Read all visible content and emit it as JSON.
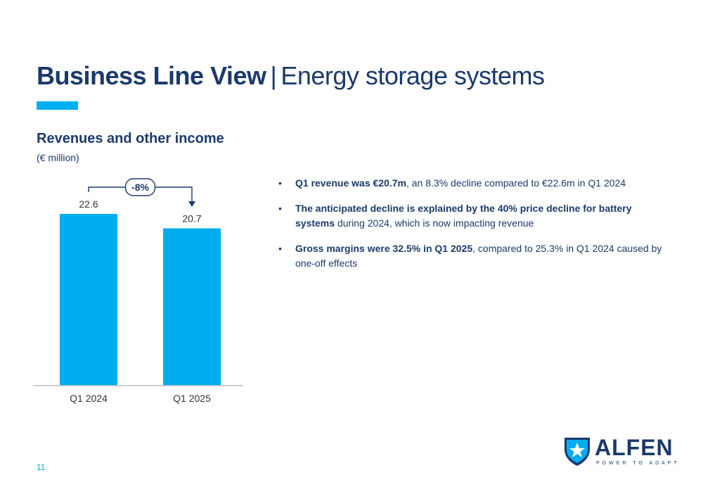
{
  "header": {
    "title_bold": "Business Line View",
    "title_separator": "|",
    "title_rest": "Energy storage systems"
  },
  "chart_section": {
    "title": "Revenues and other income",
    "unit": "(€ million)"
  },
  "chart_data": {
    "type": "bar",
    "categories": [
      "Q1 2024",
      "Q1 2025"
    ],
    "values": [
      22.6,
      20.7
    ],
    "value_labels": [
      "22.6",
      "20.7"
    ],
    "title": "Revenues and other income",
    "ylabel": "(€ million)",
    "ylim": [
      0,
      22.6
    ],
    "grid": false,
    "annotation": "-8%",
    "bar_color": "#00aeef"
  },
  "bullets": [
    {
      "bold": "Q1 revenue was €20.7m",
      "text": ", an 8.3% decline compared to €22.6m in Q1 2024"
    },
    {
      "bold": "The anticipated decline is explained by the 40% price decline for battery systems",
      "text": " during 2024, which is now impacting revenue"
    },
    {
      "bold": "Gross margins were 32.5% in Q1 2025",
      "text": ", compared to 25.3% in Q1 2024 caused by one-off effects"
    }
  ],
  "bullet_glyph": "•",
  "footer": {
    "page_number": "11",
    "logo_name": "ALFEN",
    "logo_tagline": "POWER TO ADAPT",
    "logo_icon": "alfen-shield-star-icon"
  },
  "colors": {
    "navy": "#1b3a6b",
    "accent": "#00aeef"
  }
}
